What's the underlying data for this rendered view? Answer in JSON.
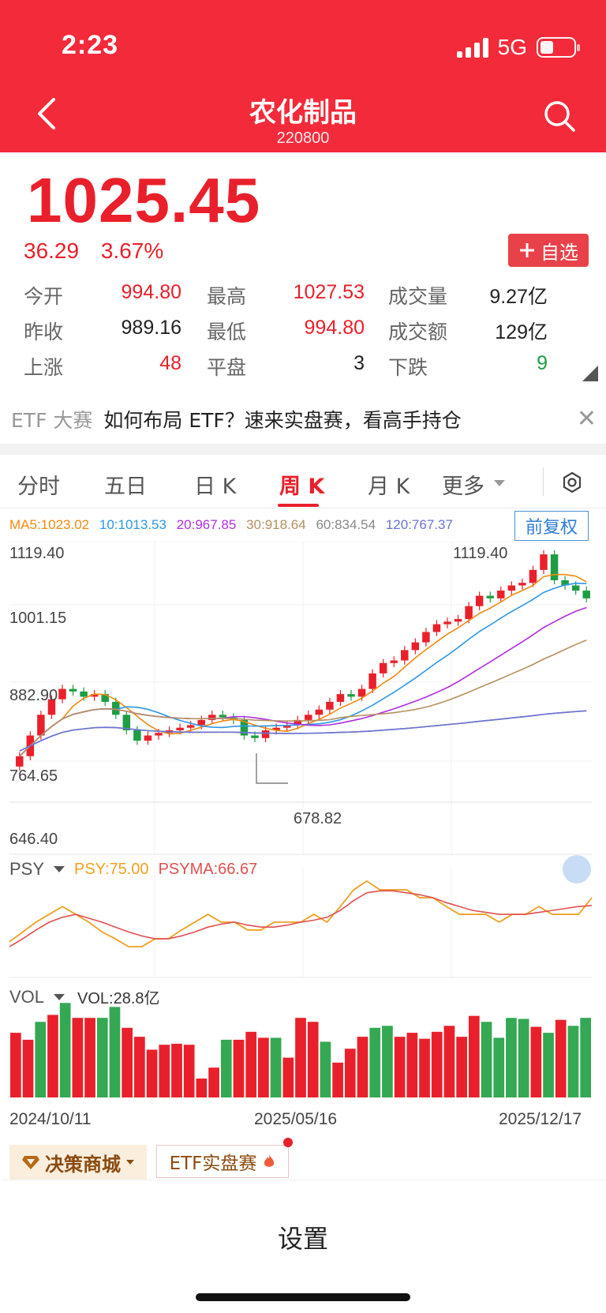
{
  "status": {
    "time": "2:23",
    "network": "5G"
  },
  "header": {
    "title": "农化制品",
    "code": "220800"
  },
  "quote": {
    "price": "1025.45",
    "change": "36.29",
    "change_pct": "3.67%",
    "watch_label": "自选",
    "stats": [
      [
        {
          "label": "今开",
          "value": "994.80",
          "color": "red"
        },
        {
          "label": "最高",
          "value": "1027.53",
          "color": "red"
        },
        {
          "label": "成交量",
          "value": "9.27亿",
          "color": "black"
        }
      ],
      [
        {
          "label": "昨收",
          "value": "989.16",
          "color": "black"
        },
        {
          "label": "最低",
          "value": "994.80",
          "color": "red"
        },
        {
          "label": "成交额",
          "value": "129亿",
          "color": "black"
        }
      ],
      [
        {
          "label": "上涨",
          "value": "48",
          "color": "red"
        },
        {
          "label": "平盘",
          "value": "3",
          "color": "black"
        },
        {
          "label": "下跌",
          "value": "9",
          "color": "green"
        }
      ]
    ]
  },
  "banner": {
    "tag": "ETF 大赛",
    "message": "如何布局 ETF？速来实盘赛，看高手持仓"
  },
  "tabs": [
    {
      "label": "分时"
    },
    {
      "label": "五日"
    },
    {
      "label": "日 K"
    },
    {
      "label": "周 K",
      "active": true
    },
    {
      "label": "月 K"
    },
    {
      "label": "更多"
    }
  ],
  "ma": {
    "ma5": "MA5:1023.02",
    "ma10": "10:1013.53",
    "ma20": "20:967.85",
    "ma30": "30:918.64",
    "ma60": "60:834.54",
    "ma120": "120:767.37",
    "adjust_label": "前复权"
  },
  "axis": {
    "y_high": "1119.40",
    "y_mid1": "1001.15",
    "y_mid2": "882.90",
    "y_mid3": "764.65",
    "y_low": "646.40",
    "max_label": "1119.40",
    "min_label": "678.82"
  },
  "psy": {
    "selector": "PSY",
    "psy": "PSY:75.00",
    "psyma": "PSYMA:66.67"
  },
  "vol": {
    "selector": "VOL",
    "value": "VOL:28.8亿"
  },
  "dates": {
    "start": "2024/10/11",
    "mid": "2025/05/16",
    "end": "2025/12/17"
  },
  "bottom": {
    "mall_label": "决策商城",
    "etf_label": "ETF实盘赛"
  },
  "sheet": {
    "label": "设置"
  },
  "chart_data": {
    "type": "candlestick",
    "ylim": [
      646.4,
      1119.4
    ],
    "closes": [
      720,
      760,
      800,
      830,
      850,
      845,
      835,
      840,
      825,
      800,
      770,
      750,
      760,
      765,
      770,
      775,
      780,
      790,
      800,
      795,
      790,
      760,
      755,
      770,
      775,
      780,
      790,
      800,
      810,
      825,
      840,
      835,
      850,
      880,
      900,
      905,
      925,
      940,
      960,
      975,
      980,
      985,
      1010,
      1030,
      1025,
      1040,
      1050,
      1055,
      1080,
      1110,
      1060,
      1050,
      1040,
      1025
    ],
    "psy": [
      30,
      40,
      50,
      58,
      66,
      58,
      50,
      40,
      33,
      25,
      25,
      33,
      33,
      42,
      50,
      58,
      50,
      50,
      42,
      42,
      50,
      50,
      50,
      58,
      50,
      66,
      83,
      92,
      83,
      83,
      83,
      75,
      75,
      66,
      58,
      58,
      58,
      50,
      58,
      58,
      66,
      58,
      58,
      58,
      75
    ],
    "psyma": [
      25,
      33,
      42,
      50,
      55,
      58,
      54,
      50,
      45,
      40,
      36,
      33,
      33,
      36,
      40,
      45,
      48,
      50,
      47,
      45,
      45,
      47,
      50,
      52,
      55,
      62,
      72,
      80,
      82,
      82,
      80,
      78,
      75,
      70,
      66,
      62,
      60,
      58,
      58,
      58,
      60,
      62,
      64,
      66,
      67
    ],
    "volume": [
      65,
      58,
      76,
      83,
      95,
      80,
      80,
      80,
      91,
      70,
      61,
      48,
      53,
      54,
      53,
      19,
      30,
      58,
      58,
      66,
      60,
      60,
      40,
      80,
      76,
      56,
      35,
      49,
      61,
      70,
      72,
      61,
      65,
      59,
      66,
      72,
      61,
      82,
      76,
      60,
      80,
      79,
      71,
      65,
      78,
      72,
      80
    ]
  }
}
